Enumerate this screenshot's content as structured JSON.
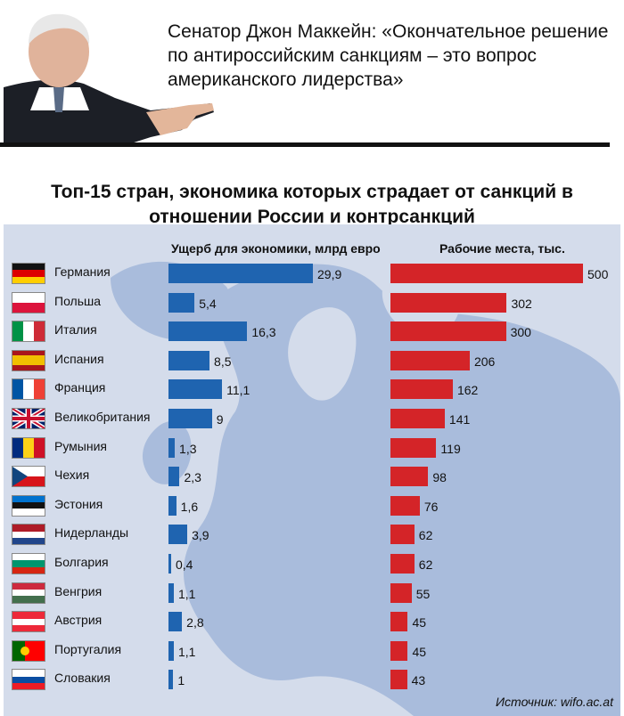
{
  "header": {
    "quote": "Сенатор Джон Маккейн: «Окончательное решение по антироссийским санкциям – это вопрос американского лидерства»"
  },
  "chart_data": {
    "type": "bar",
    "title": "Топ-15 стран, экономика которых страдает от санкций в отношении России и контрсанкций",
    "categories": [
      "Германия",
      "Польша",
      "Италия",
      "Испания",
      "Франция",
      "Великобритания",
      "Румыния",
      "Чехия",
      "Эстония",
      "Нидерланды",
      "Болгария",
      "Венгрия",
      "Австрия",
      "Португалия",
      "Словакия"
    ],
    "series": [
      {
        "name": "Ущерб для экономики, млрд евро",
        "color": "#1f64b0",
        "values": [
          29.9,
          5.4,
          16.3,
          8.5,
          11.1,
          9,
          1.3,
          2.3,
          1.6,
          3.9,
          0.4,
          1.1,
          2.8,
          1.1,
          1
        ],
        "labels": [
          "29,9",
          "5,4",
          "16,3",
          "8,5",
          "11,1",
          "9",
          "1,3",
          "2,3",
          "1,6",
          "3,9",
          "0,4",
          "1,1",
          "2,8",
          "1,1",
          "1"
        ]
      },
      {
        "name": "Рабочие места, тыс.",
        "color": "#d42428",
        "values": [
          500,
          302,
          300,
          206,
          162,
          141,
          119,
          98,
          76,
          62,
          62,
          55,
          45,
          45,
          43
        ],
        "labels": [
          "500",
          "302",
          "300",
          "206",
          "162",
          "141",
          "119",
          "98",
          "76",
          "62",
          "62",
          "55",
          "45",
          "45",
          "43"
        ]
      }
    ],
    "flags": [
      {
        "dir": "h",
        "colors": [
          "#111111",
          "#dd0000",
          "#ffce00"
        ]
      },
      {
        "dir": "h",
        "colors": [
          "#ffffff",
          "#dc143c"
        ]
      },
      {
        "dir": "v",
        "colors": [
          "#009246",
          "#ffffff",
          "#ce2b37"
        ]
      },
      {
        "dir": "h",
        "colors": [
          "#aa151b",
          "#f1bf00",
          "#f1bf00",
          "#aa151b"
        ]
      },
      {
        "dir": "v",
        "colors": [
          "#0055a4",
          "#ffffff",
          "#ef4135"
        ]
      },
      {
        "dir": "uk",
        "colors": [
          "#012169",
          "#ffffff",
          "#c8102e"
        ]
      },
      {
        "dir": "v",
        "colors": [
          "#002b7f",
          "#fcd116",
          "#ce1126"
        ]
      },
      {
        "dir": "cz",
        "colors": [
          "#ffffff",
          "#d7141a",
          "#11457e"
        ]
      },
      {
        "dir": "h",
        "colors": [
          "#0072ce",
          "#111111",
          "#ffffff"
        ]
      },
      {
        "dir": "h",
        "colors": [
          "#ae1c28",
          "#ffffff",
          "#21468b"
        ]
      },
      {
        "dir": "h",
        "colors": [
          "#ffffff",
          "#00966e",
          "#d62612"
        ]
      },
      {
        "dir": "h",
        "colors": [
          "#cd2a3e",
          "#ffffff",
          "#436f4d"
        ]
      },
      {
        "dir": "h",
        "colors": [
          "#ed2939",
          "#ffffff",
          "#ed2939"
        ]
      },
      {
        "dir": "pt",
        "colors": [
          "#006600",
          "#ff0000"
        ]
      },
      {
        "dir": "h",
        "colors": [
          "#ffffff",
          "#0b4ea2",
          "#ee1c25"
        ]
      }
    ],
    "legend": "column-headers"
  },
  "source": "Источник: wifo.ac.at"
}
